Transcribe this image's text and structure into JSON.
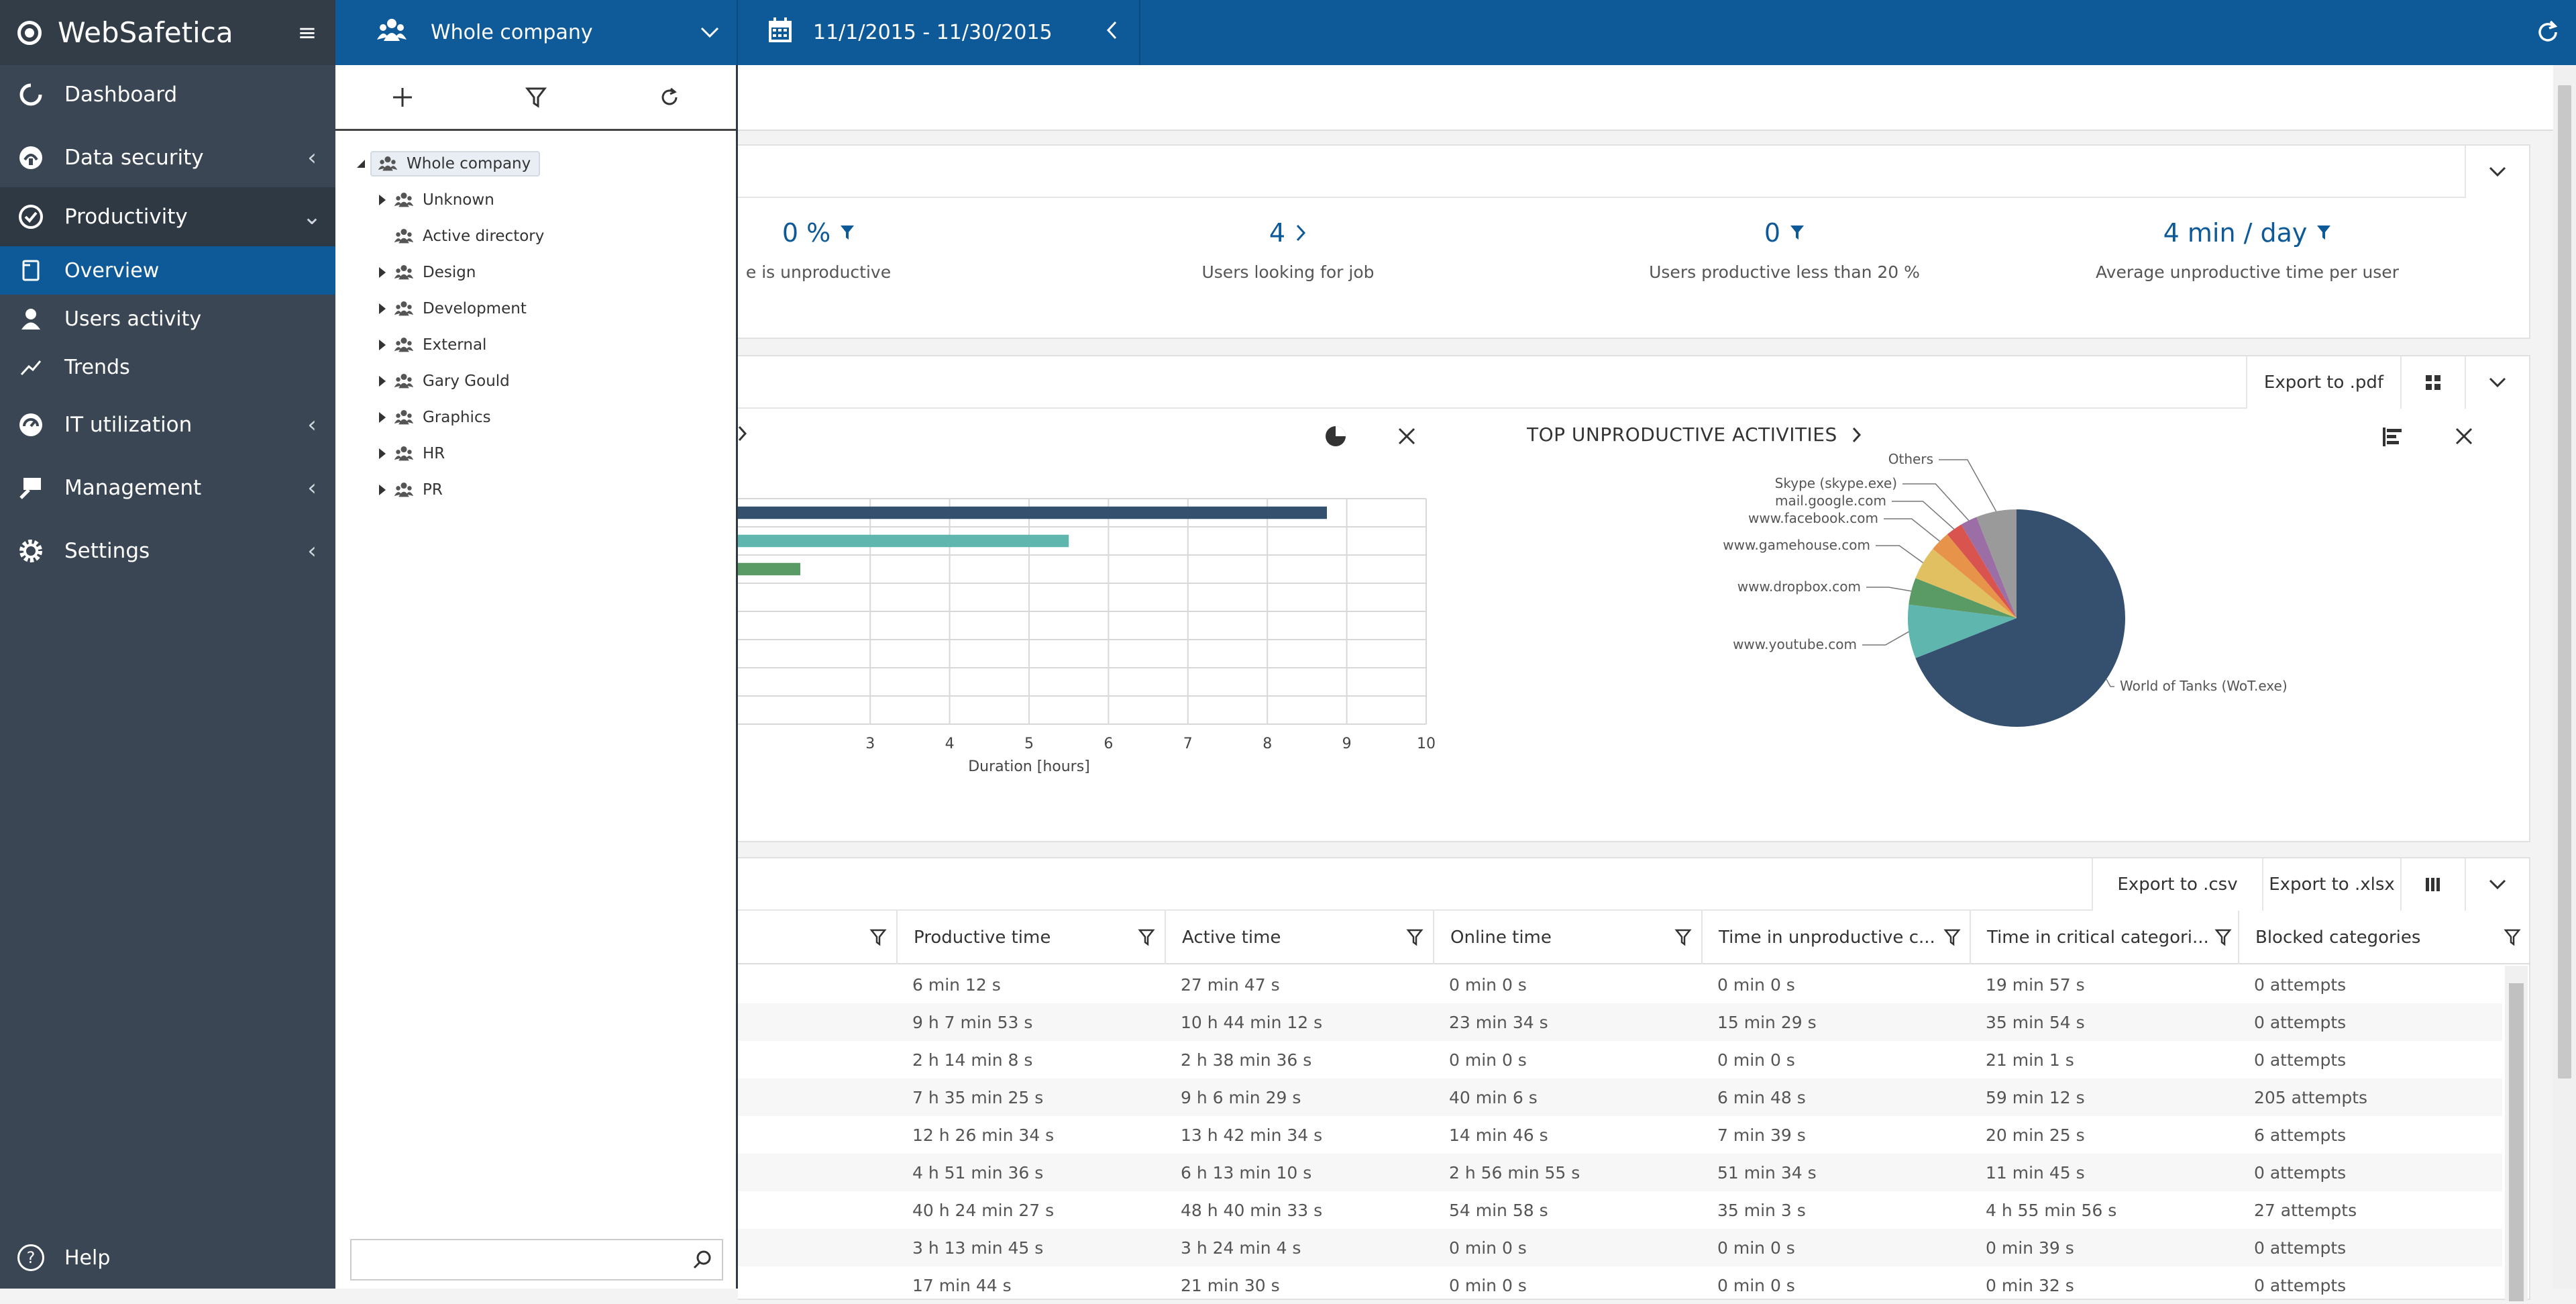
{
  "app": {
    "name": "WebSafetica"
  },
  "nav": {
    "dashboard": "Dashboard",
    "data_security": "Data security",
    "productivity": "Productivity",
    "overview": "Overview",
    "users_activity": "Users activity",
    "trends": "Trends",
    "it_utilization": "IT utilization",
    "management": "Management",
    "settings": "Settings",
    "help": "Help"
  },
  "topbar": {
    "company": "Whole company",
    "date_range": "11/1/2015 - 11/30/2015"
  },
  "tree": {
    "root": "Whole company",
    "children": [
      {
        "label": "Unknown",
        "expandable": true
      },
      {
        "label": "Active directory",
        "expandable": false
      },
      {
        "label": "Design",
        "expandable": true
      },
      {
        "label": "Development",
        "expandable": true
      },
      {
        "label": "External",
        "expandable": true
      },
      {
        "label": "Gary Gould",
        "expandable": true
      },
      {
        "label": "Graphics",
        "expandable": true
      },
      {
        "label": "HR",
        "expandable": true
      },
      {
        "label": "PR",
        "expandable": true
      }
    ],
    "search_placeholder": ""
  },
  "stats": [
    {
      "value": "0 %",
      "caption": "e is unproductive",
      "icon": "filter-icon"
    },
    {
      "value": "4",
      "caption": "Users looking for job",
      "icon": "chevron-right-icon"
    },
    {
      "value": "0",
      "caption": "Users productive less than 20 %",
      "icon": "filter-icon"
    },
    {
      "value": "4 min / day",
      "caption": "Average unproductive time per user",
      "icon": "filter-icon"
    }
  ],
  "charts_toolbar": {
    "export_pdf": "Export to .pdf"
  },
  "chart_data": [
    {
      "type": "bar",
      "orientation": "horizontal",
      "xlabel": "Duration [hours]",
      "xlim": [
        0,
        10
      ],
      "x_ticks": [
        "3",
        "4",
        "5",
        "6",
        "7",
        "8",
        "9",
        "10"
      ],
      "values": [
        8.75,
        5.5,
        2.12
      ],
      "colors": [
        "#34506e",
        "#5fb6ae",
        "#5a9a65"
      ],
      "grid": true
    },
    {
      "type": "pie",
      "title": "TOP UNPRODUCTIVE ACTIVITIES",
      "labels": [
        "World of Tanks (WoT.exe)",
        "www.youtube.com",
        "www.dropbox.com",
        "www.gamehouse.com",
        "www.facebook.com",
        "mail.google.com",
        "Skype (skype.exe)",
        "Others"
      ],
      "values": [
        69.0,
        8.0,
        4.0,
        5.0,
        3.0,
        2.5,
        2.5,
        6.0
      ],
      "colors": [
        "#34506e",
        "#5fb6ae",
        "#5a9a65",
        "#e0c060",
        "#e8934a",
        "#d9534f",
        "#9b6fa6",
        "#9a9a9a"
      ]
    }
  ],
  "table_toolbar": {
    "export_csv": "Export to .csv",
    "export_xlsx": "Export to .xlsx"
  },
  "table": {
    "columns": [
      "Productive time",
      "Active time",
      "Online time",
      "Time in unproductive c...",
      "Time in critical categori...",
      "Blocked categories"
    ],
    "rows": [
      [
        "6 min 12 s",
        "27 min 47 s",
        "0 min 0 s",
        "0 min 0 s",
        "19 min 57 s",
        "0 attempts"
      ],
      [
        "9 h 7 min 53 s",
        "10 h 44 min 12 s",
        "23 min 34 s",
        "15 min 29 s",
        "35 min 54 s",
        "0 attempts"
      ],
      [
        "2 h 14 min 8 s",
        "2 h 38 min 36 s",
        "0 min 0 s",
        "0 min 0 s",
        "21 min 1 s",
        "0 attempts"
      ],
      [
        "7 h 35 min 25 s",
        "9 h 6 min 29 s",
        "40 min 6 s",
        "6 min 48 s",
        "59 min 12 s",
        "205 attempts"
      ],
      [
        "12 h 26 min 34 s",
        "13 h 42 min 34 s",
        "14 min 46 s",
        "7 min 39 s",
        "20 min 25 s",
        "6 attempts"
      ],
      [
        "4 h 51 min 36 s",
        "6 h 13 min 10 s",
        "2 h 56 min 55 s",
        "51 min 34 s",
        "11 min 45 s",
        "0 attempts"
      ],
      [
        "40 h 24 min 27 s",
        "48 h 40 min 33 s",
        "54 min 58 s",
        "35 min 3 s",
        "4 h 55 min 56 s",
        "27 attempts"
      ],
      [
        "3 h 13 min 45 s",
        "3 h 24 min 4 s",
        "0 min 0 s",
        "0 min 0 s",
        "0 min 39 s",
        "0 attempts"
      ],
      [
        "17 min 44 s",
        "21 min 30 s",
        "0 min 0 s",
        "0 min 0 s",
        "0 min 32 s",
        "0 attempts"
      ]
    ]
  }
}
